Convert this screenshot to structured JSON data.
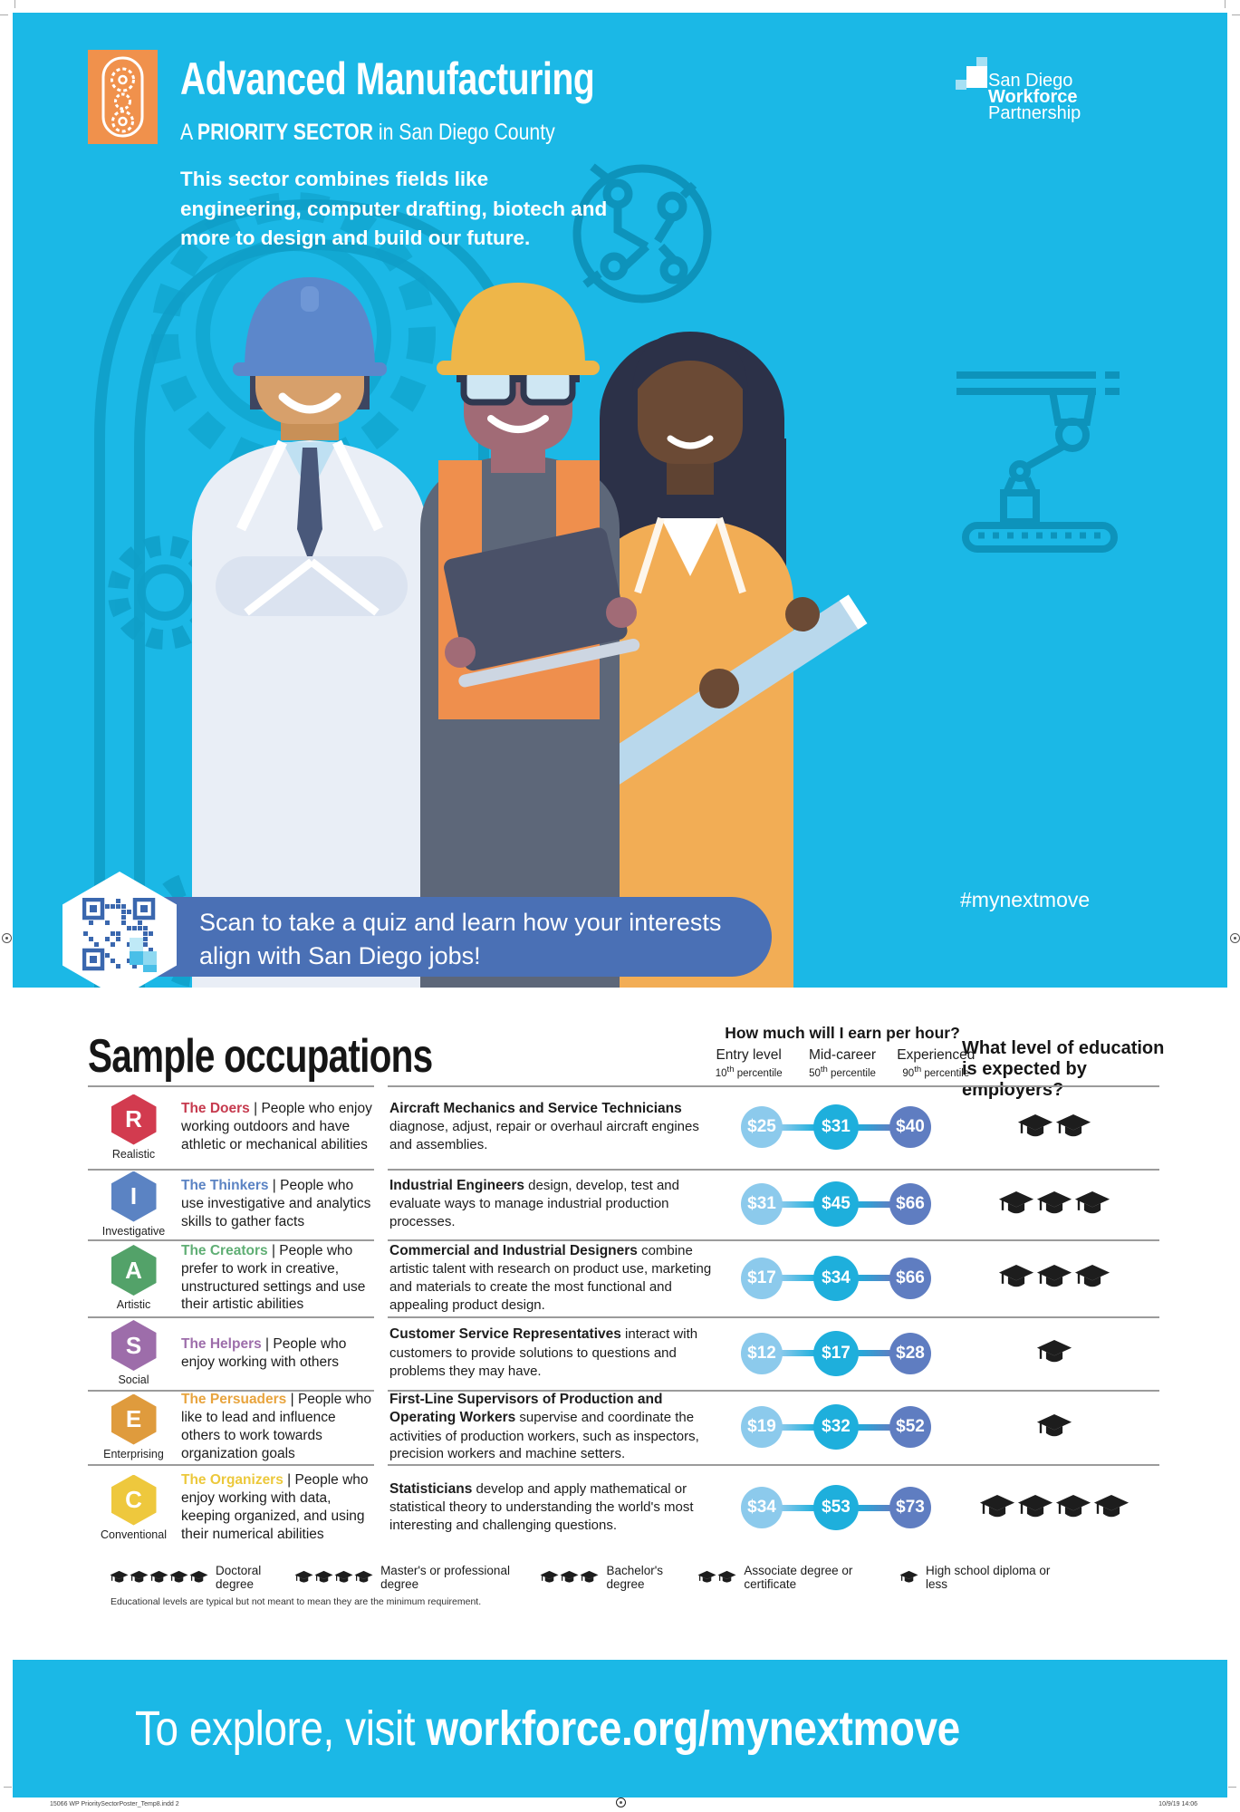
{
  "hero": {
    "title": "Advanced Manufacturing",
    "subtitle_prefix": "A ",
    "subtitle_bold": "PRIORITY SECTOR",
    "subtitle_suffix": " in San Diego County",
    "description": "This sector combines fields like engineering, computer drafting, biotech and more to design and build our future.",
    "logo": {
      "line1": "San Diego",
      "line2": "Workforce",
      "line3": "Partnership"
    },
    "qr_text": "Scan to take a quiz and learn how your interests align with San Diego jobs!",
    "hashtag": "#mynextmove",
    "colors": {
      "background": "#1bb8e6",
      "banner": "#4a70b5",
      "brand_icon": "#f0914c",
      "outline_art": "#0f9fc8"
    }
  },
  "occupations": {
    "title": "Sample occupations",
    "earn_header": "How much will I earn per hour?",
    "earn_columns": [
      {
        "label": "Entry level",
        "pct": "10",
        "suffix": "th",
        "word": " percentile"
      },
      {
        "label": "Mid-career",
        "pct": "50",
        "suffix": "th",
        "word": " percentile"
      },
      {
        "label": "Experienced",
        "pct": "90",
        "suffix": "th",
        "word": " percentile"
      }
    ],
    "education_header": "What level of education is expected by employers?",
    "wage_colors": [
      "#8ccaec",
      "#1eafdc",
      "#5f7dc1"
    ],
    "rows": [
      {
        "letter": "R",
        "category": "Realistic",
        "hex_color": "#d23b4f",
        "name_color": "#c63a4e",
        "personality_name": "The Doers",
        "personality_desc": "People who enjoy working outdoors and have athletic or mechanical abilities",
        "occupation_name": "Aircraft Mechanics and Service Technicians",
        "occupation_desc": " diagnose, adjust, repair or overhaul aircraft engines and assemblies.",
        "wages": [
          "$25",
          "$31",
          "$40"
        ],
        "caps": 2,
        "education": "Associate degree or certificate"
      },
      {
        "letter": "I",
        "category": "Investigative",
        "hex_color": "#5b83c3",
        "name_color": "#5b83c3",
        "personality_name": "The Thinkers",
        "personality_desc": "People who use investigative and analytics skills to gather facts",
        "occupation_name": "Industrial Engineers",
        "occupation_desc": " design, develop, test and evaluate ways to manage industrial production processes.",
        "wages": [
          "$31",
          "$45",
          "$66"
        ],
        "caps": 3,
        "education": "Bachelor's degree"
      },
      {
        "letter": "A",
        "category": "Artistic",
        "hex_color": "#53a269",
        "name_color": "#5fae74",
        "personality_name": "The Creators",
        "personality_desc": "People who prefer to work in creative, unstructured settings and use their artistic abilities",
        "occupation_name": "Commercial and Industrial Designers",
        "occupation_desc": " combine artistic talent with research on product use, marketing and materials to create the most functional and appealing product design.",
        "wages": [
          "$17",
          "$34",
          "$66"
        ],
        "caps": 3,
        "education": "Bachelor's degree"
      },
      {
        "letter": "S",
        "category": "Social",
        "hex_color": "#9d6daa",
        "name_color": "#9d6daa",
        "personality_name": "The Helpers",
        "personality_desc": "People who enjoy working with others",
        "occupation_name": "Customer Service Representatives",
        "occupation_desc": " interact with customers to provide solutions to questions and problems they may have.",
        "wages": [
          "$12",
          "$17",
          "$28"
        ],
        "caps": 1,
        "education": "High school diploma or less"
      },
      {
        "letter": "E",
        "category": "Enterprising",
        "hex_color": "#df9b3d",
        "name_color": "#e8a43e",
        "personality_name": "The Persuaders",
        "personality_desc": "People who like to lead and influence others to work towards organization goals",
        "occupation_name": "First-Line Supervisors of Production and Operating Workers",
        "occupation_desc": " supervise and coordinate the activities of production workers, such as inspectors, precision workers and machine setters.",
        "wages": [
          "$19",
          "$32",
          "$52"
        ],
        "caps": 1,
        "education": "High school diploma or less"
      },
      {
        "letter": "C",
        "category": "Conventional",
        "hex_color": "#eec83d",
        "name_color": "#ecc83b",
        "personality_name": "The Organizers",
        "personality_desc": "People who enjoy working with data, keeping organized, and using their numerical abilities",
        "occupation_name": "Statisticians",
        "occupation_desc": " develop and apply mathematical or statistical theory to understanding the world's most interesting and challenging questions.",
        "wages": [
          "$34",
          "$53",
          "$73"
        ],
        "caps": 4,
        "education": "Master's or professional degree"
      }
    ],
    "legend": [
      {
        "caps": 5,
        "label": "Doctoral degree"
      },
      {
        "caps": 4,
        "label": "Master's or professional degree"
      },
      {
        "caps": 3,
        "label": "Bachelor's degree"
      },
      {
        "caps": 2,
        "label": "Associate degree or certificate"
      },
      {
        "caps": 1,
        "label": "High school diploma or less"
      }
    ],
    "footnote": "Educational levels are typical but not meant to mean they are the minimum requirement."
  },
  "footer": {
    "prefix": "To explore, visit ",
    "bold": "workforce.org/mynextmove"
  },
  "print_meta": {
    "left": "15066 WP PrioritySectorPoster_Temp8.indd   2",
    "right": "10/9/19   14:06"
  },
  "chart_data": {
    "type": "table",
    "title": "Sample occupations — hourly wage percentiles (Advanced Manufacturing, San Diego County)",
    "columns": [
      "Occupation",
      "Entry level (10th percentile)",
      "Mid-career (50th percentile)",
      "Experienced (90th percentile)",
      "Typical education"
    ],
    "rows": [
      [
        "Aircraft Mechanics and Service Technicians",
        25,
        31,
        40,
        "Associate degree or certificate"
      ],
      [
        "Industrial Engineers",
        31,
        45,
        66,
        "Bachelor's degree"
      ],
      [
        "Commercial and Industrial Designers",
        17,
        34,
        66,
        "Bachelor's degree"
      ],
      [
        "Customer Service Representatives",
        12,
        17,
        28,
        "High school diploma or less"
      ],
      [
        "First-Line Supervisors of Production and Operating Workers",
        19,
        32,
        52,
        "High school diploma or less"
      ],
      [
        "Statisticians",
        34,
        53,
        73,
        "Master's or professional degree"
      ]
    ]
  }
}
